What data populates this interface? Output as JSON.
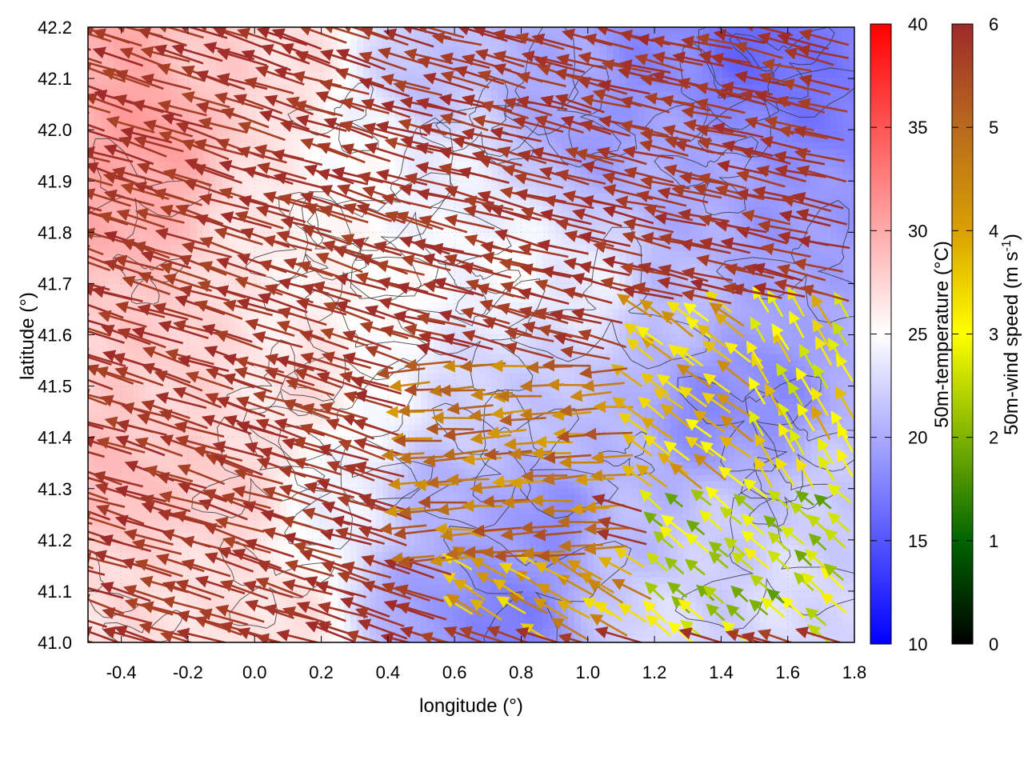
{
  "chart_data": {
    "type": "heatmap",
    "title": "",
    "xlabel": "longitude (°)",
    "ylabel": "latitude (°)",
    "xlim": [
      -0.5,
      1.8
    ],
    "ylim": [
      41.0,
      42.2
    ],
    "xticks": [
      "-0.4",
      "-0.2",
      "0.0",
      "0.2",
      "0.4",
      "0.6",
      "0.8",
      "1.0",
      "1.2",
      "1.4",
      "1.6",
      "1.8"
    ],
    "xtick_values": [
      -0.4,
      -0.2,
      0.0,
      0.2,
      0.4,
      0.6,
      0.8,
      1.0,
      1.2,
      1.4,
      1.6,
      1.8
    ],
    "yticks": [
      "41.0",
      "41.1",
      "41.2",
      "41.3",
      "41.4",
      "41.5",
      "41.6",
      "41.7",
      "41.8",
      "41.9",
      "42.0",
      "42.1",
      "42.2"
    ],
    "ytick_values": [
      41.0,
      41.1,
      41.2,
      41.3,
      41.4,
      41.5,
      41.6,
      41.7,
      41.8,
      41.9,
      42.0,
      42.1,
      42.2
    ],
    "grid": true,
    "temperature_colorbar": {
      "label": "50m-temperature (°C)",
      "range": [
        10,
        40
      ],
      "ticks": [
        "10",
        "15",
        "20",
        "25",
        "30",
        "35",
        "40"
      ],
      "tick_values": [
        10,
        15,
        20,
        25,
        30,
        35,
        40
      ],
      "colors": [
        "#0000ff",
        "#ffffff",
        "#ff0000"
      ]
    },
    "wind_colorbar": {
      "label_main": "50m-wind speed (m s",
      "label_sup": "-1",
      "label_end": ")",
      "range": [
        0,
        6
      ],
      "ticks": [
        "0",
        "1",
        "2",
        "3",
        "4",
        "5",
        "6"
      ],
      "tick_values": [
        0,
        1,
        2,
        3,
        4,
        5,
        6
      ],
      "colors": [
        "#000000",
        "#006400",
        "#7fb300",
        "#ffff00",
        "#d9a000",
        "#b86a1e",
        "#9e2a2a"
      ]
    },
    "temperature_field_points": [
      {
        "lon": -0.45,
        "lat": 42.15,
        "t": 30
      },
      {
        "lon": -0.3,
        "lat": 42.0,
        "t": 31
      },
      {
        "lon": -0.4,
        "lat": 41.85,
        "t": 30
      },
      {
        "lon": -0.1,
        "lat": 42.1,
        "t": 28
      },
      {
        "lon": 0.1,
        "lat": 42.15,
        "t": 27
      },
      {
        "lon": -0.3,
        "lat": 41.6,
        "t": 28
      },
      {
        "lon": -0.4,
        "lat": 41.3,
        "t": 29
      },
      {
        "lon": -0.1,
        "lat": 41.3,
        "t": 28
      },
      {
        "lon": -0.3,
        "lat": 41.1,
        "t": 27
      },
      {
        "lon": 0.1,
        "lat": 41.05,
        "t": 27
      },
      {
        "lon": 0.2,
        "lat": 41.5,
        "t": 27
      },
      {
        "lon": 0.1,
        "lat": 41.8,
        "t": 26
      },
      {
        "lon": 0.35,
        "lat": 41.95,
        "t": 25
      },
      {
        "lon": 0.4,
        "lat": 41.7,
        "t": 25.5
      },
      {
        "lon": 0.6,
        "lat": 41.9,
        "t": 24
      },
      {
        "lon": 0.75,
        "lat": 41.75,
        "t": 25
      },
      {
        "lon": 0.5,
        "lat": 42.1,
        "t": 21
      },
      {
        "lon": 0.85,
        "lat": 42.1,
        "t": 20
      },
      {
        "lon": 1.0,
        "lat": 42.0,
        "t": 19
      },
      {
        "lon": 1.2,
        "lat": 42.15,
        "t": 18
      },
      {
        "lon": 1.5,
        "lat": 42.15,
        "t": 16
      },
      {
        "lon": 1.7,
        "lat": 42.05,
        "t": 17
      },
      {
        "lon": 1.3,
        "lat": 41.9,
        "t": 20
      },
      {
        "lon": 1.6,
        "lat": 41.85,
        "t": 19
      },
      {
        "lon": 1.0,
        "lat": 41.7,
        "t": 24
      },
      {
        "lon": 1.3,
        "lat": 41.65,
        "t": 21
      },
      {
        "lon": 1.55,
        "lat": 41.5,
        "t": 18
      },
      {
        "lon": 1.35,
        "lat": 41.45,
        "t": 18
      },
      {
        "lon": 1.75,
        "lat": 41.6,
        "t": 20
      },
      {
        "lon": 0.7,
        "lat": 41.45,
        "t": 22
      },
      {
        "lon": 1.0,
        "lat": 41.4,
        "t": 21
      },
      {
        "lon": 0.55,
        "lat": 41.3,
        "t": 20
      },
      {
        "lon": 0.9,
        "lat": 41.25,
        "t": 18
      },
      {
        "lon": 0.5,
        "lat": 41.1,
        "t": 19
      },
      {
        "lon": 0.75,
        "lat": 41.05,
        "t": 17
      },
      {
        "lon": 1.1,
        "lat": 41.2,
        "t": 21
      },
      {
        "lon": 1.4,
        "lat": 41.2,
        "t": 22
      },
      {
        "lon": 1.6,
        "lat": 41.1,
        "t": 23
      },
      {
        "lon": 1.75,
        "lat": 41.3,
        "t": 22
      },
      {
        "lon": 1.2,
        "lat": 41.05,
        "t": 23
      },
      {
        "lon": 0.3,
        "lat": 41.25,
        "t": 24
      },
      {
        "lon": 0.4,
        "lat": 41.45,
        "t": 24.5
      }
    ],
    "wind_regions": [
      {
        "lon": [
          -0.5,
          0.5
        ],
        "lat": [
          41.0,
          42.2
        ],
        "u": 0.95,
        "v": 0.3,
        "speed": 6
      },
      {
        "lon": [
          0.5,
          1.2
        ],
        "lat": [
          41.55,
          42.2
        ],
        "u": 0.97,
        "v": 0.25,
        "speed": 6
      },
      {
        "lon": [
          1.2,
          1.8
        ],
        "lat": [
          41.65,
          42.2
        ],
        "u": 0.97,
        "v": 0.22,
        "speed": 6
      },
      {
        "lon": [
          0.5,
          1.15
        ],
        "lat": [
          41.15,
          41.55
        ],
        "u": 0.97,
        "v": -0.05,
        "speed": 5.5
      },
      {
        "lon": [
          1.15,
          1.5
        ],
        "lat": [
          41.3,
          41.65
        ],
        "u": 0.8,
        "v": 0.6,
        "speed": 4.5
      },
      {
        "lon": [
          1.5,
          1.8
        ],
        "lat": [
          41.3,
          41.65
        ],
        "u": 0.5,
        "v": 0.85,
        "speed": 4
      },
      {
        "lon": [
          1.2,
          1.8
        ],
        "lat": [
          41.0,
          41.3
        ],
        "u": 0.75,
        "v": 0.65,
        "speed": 3.2
      },
      {
        "lon": [
          0.6,
          1.2
        ],
        "lat": [
          41.0,
          41.15
        ],
        "u": 0.85,
        "v": 0.5,
        "speed": 4.8
      }
    ]
  }
}
